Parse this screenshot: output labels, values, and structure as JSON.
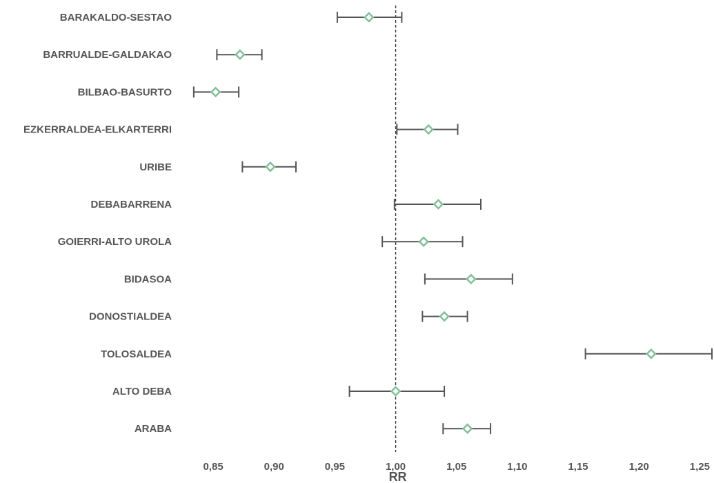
{
  "chart_data": {
    "type": "forest",
    "xlabel": "RR",
    "xlim": [
      0.825,
      1.26
    ],
    "xticks": [
      "0,85",
      "0,90",
      "0,95",
      "1,00",
      "1,05",
      "1,10",
      "1,15",
      "1,20",
      "1,25"
    ],
    "xtick_values": [
      0.85,
      0.9,
      0.95,
      1.0,
      1.05,
      1.1,
      1.15,
      1.2,
      1.25
    ],
    "reference_line": 1.0,
    "reference_style": "dashed",
    "grid": false,
    "colors": {
      "marker": "#82be98",
      "error_bar": "#555555",
      "text": "#555555",
      "reference": "#333333"
    },
    "categories": [
      "BARAKALDO-SESTAO",
      "BARRUALDE-GALDAKAO",
      "BILBAO-BASURTO",
      "EZKERRALDEA-ELKARTERRI",
      "URIBE",
      "DEBABARRENA",
      "GOIERRI-ALTO UROLA",
      "BIDASOA",
      "DONOSTIALDEA",
      "TOLOSALDEA",
      "ALTO DEBA",
      "ARABA"
    ],
    "series": [
      {
        "estimate": [
          0.978,
          0.872,
          0.852,
          1.027,
          0.897,
          1.035,
          1.023,
          1.062,
          1.04,
          1.21,
          1.0,
          1.059
        ],
        "lower": [
          0.952,
          0.853,
          0.834,
          1.001,
          0.874,
          0.999,
          0.989,
          1.024,
          1.022,
          1.156,
          0.962,
          1.039
        ],
        "upper": [
          1.005,
          0.89,
          0.871,
          1.051,
          0.918,
          1.07,
          1.055,
          1.096,
          1.059,
          1.26,
          1.04,
          1.078
        ]
      }
    ]
  }
}
